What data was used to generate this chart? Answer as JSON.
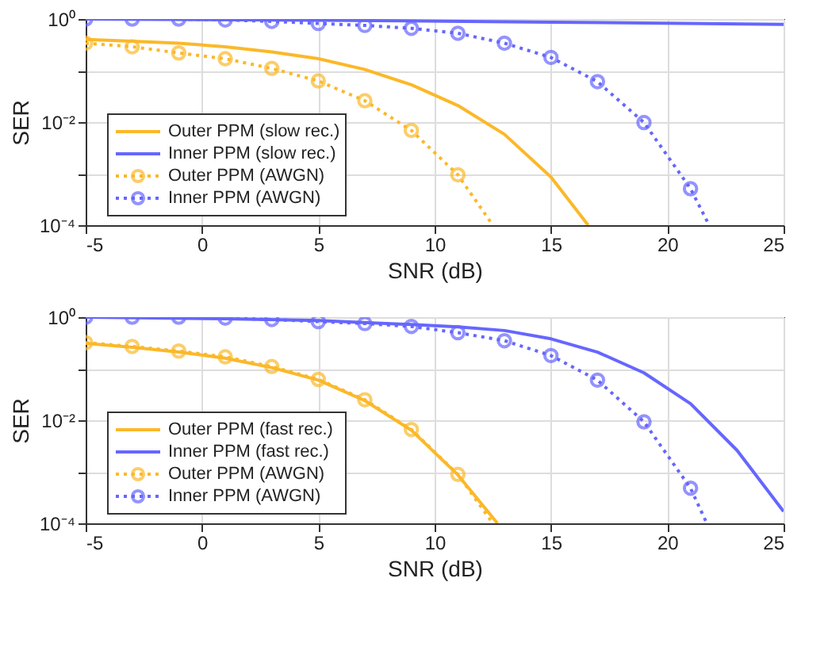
{
  "chart_data": [
    {
      "type": "line",
      "xlabel": "SNR (dB)",
      "ylabel": "SER",
      "xlim": [
        -5,
        25
      ],
      "xticks": [
        -5,
        0,
        5,
        10,
        15,
        20,
        25
      ],
      "ylim": [
        0.0001,
        1
      ],
      "yticks": [
        {
          "value": 0.0001,
          "label": "10⁻⁴"
        },
        {
          "value": 0.001,
          "label": null
        },
        {
          "value": 0.01,
          "label": "10⁻²"
        },
        {
          "value": 0.1,
          "label": null
        },
        {
          "value": 1,
          "label": "10⁰"
        }
      ],
      "log": "y",
      "grid": true,
      "legend": "bottom left",
      "series": [
        {
          "name": "Outer PPM (slow rec.)",
          "color": "#fbb829",
          "line_style": "solid",
          "marker": "none",
          "x": [
            -5,
            -3,
            -1,
            1,
            3,
            5,
            7,
            9,
            11,
            13,
            15,
            16.6
          ],
          "values": [
            0.4,
            0.37,
            0.34,
            0.29,
            0.23,
            0.17,
            0.105,
            0.053,
            0.021,
            0.0058,
            0.00086,
            0.0001
          ]
        },
        {
          "name": "Inner PPM (slow rec.)",
          "color": "#6666ff",
          "line_style": "solid",
          "marker": "none",
          "x": [
            -5,
            5,
            15,
            25
          ],
          "values": [
            1.0,
            0.95,
            0.87,
            0.79
          ]
        },
        {
          "name": "Outer PPM (AWGN)",
          "color": "#fbb829",
          "line_style": "dotted",
          "marker": "circle",
          "x": [
            -5,
            -3,
            -1,
            1,
            3,
            5,
            7,
            9,
            11,
            12.5
          ],
          "values": [
            0.34,
            0.29,
            0.22,
            0.17,
            0.11,
            0.063,
            0.026,
            0.0069,
            0.00095,
            0.0001
          ]
        },
        {
          "name": "Inner PPM (AWGN)",
          "color": "#6666ff",
          "line_style": "dotted",
          "marker": "circle",
          "x": [
            -5,
            -3,
            -1,
            1,
            3,
            5,
            7,
            9,
            11,
            13,
            15,
            17,
            19,
            21,
            21.8
          ],
          "values": [
            1.0,
            1.0,
            1.0,
            0.96,
            0.9,
            0.82,
            0.75,
            0.66,
            0.53,
            0.34,
            0.18,
            0.061,
            0.0098,
            0.00051,
            0.0001
          ]
        }
      ]
    },
    {
      "type": "line",
      "xlabel": "SNR (dB)",
      "ylabel": "SER",
      "xlim": [
        -5,
        25
      ],
      "xticks": [
        -5,
        0,
        5,
        10,
        15,
        20,
        25
      ],
      "ylim": [
        0.0001,
        1
      ],
      "yticks": [
        {
          "value": 0.0001,
          "label": "10⁻⁴"
        },
        {
          "value": 0.001,
          "label": null
        },
        {
          "value": 0.01,
          "label": "10⁻²"
        },
        {
          "value": 0.1,
          "label": null
        },
        {
          "value": 1,
          "label": "10⁰"
        }
      ],
      "log": "y",
      "grid": true,
      "legend": "bottom left",
      "series": [
        {
          "name": "Outer PPM (fast rec.)",
          "color": "#fbb829",
          "line_style": "solid",
          "marker": "none",
          "x": [
            -5,
            -3,
            -1,
            1,
            3,
            5,
            7,
            9,
            11,
            12.7
          ],
          "values": [
            0.31,
            0.26,
            0.21,
            0.16,
            0.105,
            0.06,
            0.024,
            0.0064,
            0.00087,
            0.0001
          ]
        },
        {
          "name": "Inner PPM (fast rec.)",
          "color": "#6666ff",
          "line_style": "solid",
          "marker": "none",
          "x": [
            -5,
            1,
            5,
            9,
            11,
            13,
            15,
            17,
            19,
            21,
            23,
            25
          ],
          "values": [
            1.0,
            0.93,
            0.86,
            0.72,
            0.65,
            0.55,
            0.38,
            0.21,
            0.083,
            0.021,
            0.0026,
            0.00017
          ]
        },
        {
          "name": "Outer PPM (AWGN)",
          "color": "#fbb829",
          "line_style": "dotted",
          "marker": "circle",
          "x": [
            -5,
            -3,
            -1,
            1,
            3,
            5,
            7,
            9,
            11,
            12.5
          ],
          "values": [
            0.32,
            0.27,
            0.22,
            0.17,
            0.11,
            0.062,
            0.025,
            0.0066,
            0.00089,
            0.0001
          ]
        },
        {
          "name": "Inner PPM (AWGN)",
          "color": "#6666ff",
          "line_style": "dotted",
          "marker": "circle",
          "x": [
            -5,
            -3,
            -1,
            1,
            3,
            5,
            7,
            9,
            11,
            13,
            15,
            17,
            19,
            21,
            21.7
          ],
          "values": [
            1.0,
            1.0,
            1.0,
            0.96,
            0.9,
            0.82,
            0.75,
            0.66,
            0.5,
            0.35,
            0.18,
            0.06,
            0.0093,
            0.00048,
            0.0001
          ]
        }
      ]
    }
  ]
}
